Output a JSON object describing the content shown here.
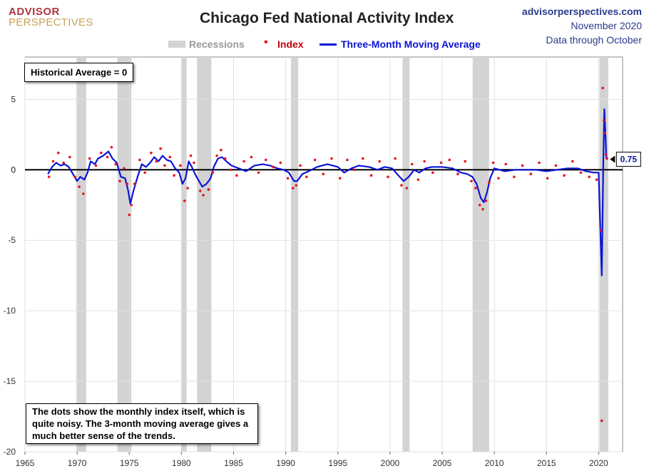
{
  "brand": {
    "line1": "ADVISOR",
    "line2": "PERSPECTIVES"
  },
  "title": "Chicago Fed National Activity Index",
  "source": {
    "site": "advisorperspectives.com",
    "date": "November 2020",
    "through": "Data through October"
  },
  "legend": {
    "recessions": "Recessions",
    "index": "Index",
    "moving_average": "Three-Month Moving Average"
  },
  "notes": {
    "historical": "Historical Average = 0",
    "explanation": "The dots show the monthly  index itself, which is quite noisy. The 3-month moving average gives a much better sense of the trends."
  },
  "colors": {
    "index": "#e8141e",
    "moving_average": "#0a14d4",
    "recession": "#d3d3d3",
    "callout": "#0a14a0"
  },
  "chart_data": {
    "type": "line",
    "xlim": [
      1965,
      2022.3
    ],
    "ylim": [
      -20,
      8
    ],
    "x_ticks": [
      1965,
      1970,
      1975,
      1980,
      1985,
      1990,
      1995,
      2000,
      2005,
      2010,
      2015,
      2020
    ],
    "y_ticks": [
      5,
      0,
      -5,
      -10,
      -15,
      -20
    ],
    "grid": true,
    "zero_line": true,
    "recessions": [
      [
        1969.92,
        1970.87
      ],
      [
        1973.87,
        1975.2
      ],
      [
        1980.0,
        1980.5
      ],
      [
        1981.5,
        1982.87
      ],
      [
        1990.5,
        1991.2
      ],
      [
        2001.2,
        2001.87
      ],
      [
        2007.92,
        2009.5
      ],
      [
        2020.08,
        2020.92
      ]
    ],
    "last_value_label": "0.75",
    "series": [
      {
        "name": "Three-Month Moving Average",
        "style": "line",
        "x": [
          1967.2,
          1967.6,
          1968.0,
          1968.4,
          1968.8,
          1969.2,
          1969.6,
          1970.0,
          1970.3,
          1970.7,
          1971.0,
          1971.3,
          1971.7,
          1972.0,
          1972.5,
          1973.0,
          1973.4,
          1973.8,
          1974.2,
          1974.6,
          1974.9,
          1975.1,
          1975.4,
          1975.8,
          1976.2,
          1976.6,
          1977.0,
          1977.4,
          1977.8,
          1978.2,
          1978.6,
          1979.0,
          1979.4,
          1979.8,
          1980.1,
          1980.4,
          1980.7,
          1981.0,
          1981.3,
          1981.6,
          1982.0,
          1982.4,
          1982.8,
          1983.1,
          1983.5,
          1983.9,
          1984.3,
          1984.8,
          1985.5,
          1986.2,
          1987.0,
          1987.8,
          1988.5,
          1989.2,
          1989.8,
          1990.3,
          1990.8,
          1991.1,
          1991.6,
          1992.2,
          1993.0,
          1994.0,
          1995.0,
          1995.6,
          1996.3,
          1997.0,
          1998.0,
          1998.8,
          1999.5,
          2000.2,
          2000.8,
          2001.3,
          2001.8,
          2002.3,
          2002.8,
          2003.4,
          2004.0,
          2005.0,
          2006.0,
          2006.8,
          2007.4,
          2007.9,
          2008.3,
          2008.7,
          2009.0,
          2009.3,
          2009.6,
          2010.0,
          2010.5,
          2011.0,
          2012.0,
          2013.0,
          2014.0,
          2015.0,
          2016.0,
          2017.0,
          2018.0,
          2018.8,
          2019.5,
          2020.0,
          2020.15,
          2020.3,
          2020.45,
          2020.55,
          2020.65,
          2020.75
        ],
        "y": [
          -0.3,
          0.2,
          0.5,
          0.3,
          0.4,
          0.2,
          -0.3,
          -0.8,
          -0.5,
          -0.7,
          -0.2,
          0.6,
          0.4,
          0.8,
          1.0,
          1.3,
          0.8,
          0.5,
          -0.5,
          -0.6,
          -1.5,
          -2.4,
          -1.5,
          -0.5,
          0.4,
          0.2,
          0.5,
          0.9,
          0.6,
          1.0,
          0.7,
          0.6,
          0.1,
          -0.2,
          -1.0,
          -0.6,
          0.6,
          0.2,
          -0.3,
          -0.7,
          -1.2,
          -1.0,
          -0.6,
          0.2,
          0.8,
          0.9,
          0.6,
          0.3,
          0.1,
          -0.1,
          0.3,
          0.4,
          0.3,
          0.1,
          0.0,
          -0.2,
          -0.8,
          -0.8,
          -0.3,
          -0.1,
          0.2,
          0.4,
          0.2,
          -0.2,
          0.1,
          0.3,
          0.2,
          0.0,
          0.2,
          0.1,
          -0.4,
          -0.8,
          -0.5,
          0.0,
          -0.2,
          0.1,
          0.2,
          0.2,
          0.1,
          -0.2,
          -0.3,
          -0.5,
          -1.0,
          -2.0,
          -2.3,
          -1.6,
          -0.6,
          0.1,
          0.0,
          -0.1,
          0.0,
          0.0,
          0.0,
          -0.1,
          0.0,
          0.1,
          0.1,
          -0.1,
          -0.2,
          -0.2,
          -4.0,
          -7.5,
          0.5,
          4.3,
          2.5,
          0.75
        ]
      },
      {
        "name": "Index",
        "style": "dots",
        "x": [
          1967.3,
          1967.7,
          1968.2,
          1968.7,
          1969.3,
          1969.8,
          1970.2,
          1970.6,
          1971.2,
          1971.8,
          1972.3,
          1972.9,
          1973.3,
          1973.7,
          1974.1,
          1974.5,
          1974.8,
          1975.0,
          1975.2,
          1975.5,
          1976.0,
          1976.5,
          1977.1,
          1977.6,
          1978.0,
          1978.4,
          1978.9,
          1979.3,
          1979.9,
          1980.3,
          1980.6,
          1980.9,
          1981.2,
          1981.8,
          1982.1,
          1982.6,
          1983.0,
          1983.4,
          1983.8,
          1984.2,
          1984.7,
          1985.3,
          1986.0,
          1986.7,
          1987.4,
          1988.1,
          1988.8,
          1989.5,
          1990.2,
          1990.7,
          1991.0,
          1991.4,
          1992.0,
          1992.8,
          1993.6,
          1994.4,
          1995.2,
          1995.9,
          1996.6,
          1997.4,
          1998.2,
          1999.0,
          1999.8,
          2000.5,
          2001.1,
          2001.6,
          2002.1,
          2002.7,
          2003.3,
          2004.1,
          2004.9,
          2005.7,
          2006.5,
          2007.2,
          2007.8,
          2008.2,
          2008.6,
          2008.9,
          2009.2,
          2009.5,
          2009.9,
          2010.4,
          2011.1,
          2011.9,
          2012.7,
          2013.5,
          2014.3,
          2015.1,
          2015.9,
          2016.7,
          2017.5,
          2018.3,
          2019.1,
          2019.8,
          2020.2,
          2020.3,
          2020.4,
          2020.5,
          2020.6,
          2020.7,
          2020.8
        ],
        "y": [
          -0.5,
          0.6,
          1.2,
          0.5,
          0.9,
          -0.5,
          -1.2,
          -1.7,
          0.8,
          0.3,
          1.2,
          0.9,
          1.6,
          0.4,
          -0.8,
          0.1,
          -1.0,
          -3.2,
          -2.5,
          -1.0,
          0.7,
          -0.2,
          1.2,
          0.6,
          1.5,
          0.3,
          0.9,
          -0.4,
          0.3,
          -2.2,
          -1.3,
          1.0,
          0.5,
          -1.5,
          -1.8,
          -1.4,
          -0.2,
          1.0,
          1.4,
          0.8,
          0.0,
          -0.4,
          0.6,
          0.9,
          -0.2,
          0.7,
          0.2,
          0.5,
          -0.6,
          -1.3,
          -1.1,
          0.3,
          -0.5,
          0.7,
          -0.3,
          0.8,
          -0.6,
          0.7,
          0.0,
          0.8,
          -0.4,
          0.6,
          -0.5,
          0.8,
          -1.1,
          -1.3,
          0.4,
          -0.7,
          0.6,
          -0.2,
          0.5,
          0.7,
          -0.3,
          0.6,
          -0.8,
          -1.3,
          -2.5,
          -2.8,
          -2.2,
          -0.9,
          0.5,
          -0.6,
          0.4,
          -0.5,
          0.3,
          -0.3,
          0.5,
          -0.6,
          0.3,
          -0.4,
          0.6,
          -0.2,
          -0.5,
          -0.7,
          -4.3,
          -17.8,
          5.8,
          3.5,
          2.6,
          1.1,
          0.8
        ]
      }
    ]
  }
}
